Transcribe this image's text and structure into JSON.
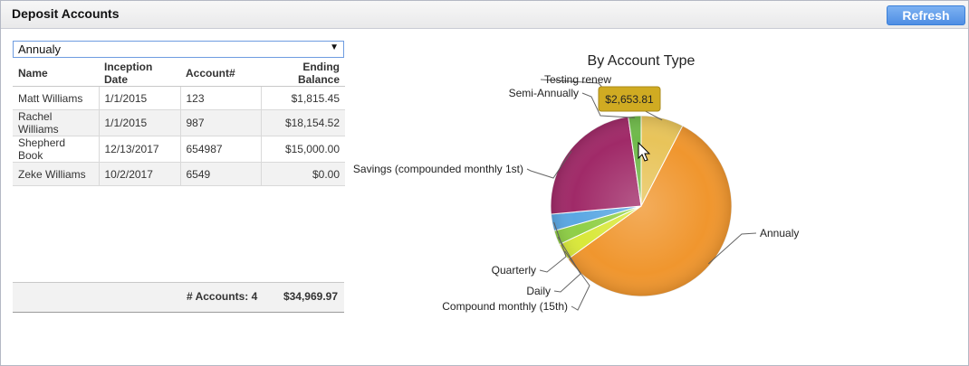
{
  "header": {
    "title": "Deposit Accounts",
    "refresh_label": "Refresh"
  },
  "filter": {
    "selected": "Annualy"
  },
  "table": {
    "columns": [
      "Name",
      "Inception Date",
      "Account#",
      "Ending Balance"
    ],
    "rows": [
      [
        "Matt Williams",
        "1/1/2015",
        "123",
        "$1,815.45"
      ],
      [
        "Rachel Williams",
        "1/1/2015",
        "987",
        "$18,154.52"
      ],
      [
        "Shepherd Book",
        "12/13/2017",
        "654987",
        "$15,000.00"
      ],
      [
        "Zeke Williams",
        "10/2/2017",
        "6549",
        "$0.00"
      ]
    ],
    "footer_count": "# Accounts: 4",
    "footer_total": "$34,969.97"
  },
  "chart_data": {
    "type": "pie",
    "title": "By Account Type",
    "slices": [
      {
        "label": "Testing renew",
        "value": 2653.81,
        "color": "#e8c45a"
      },
      {
        "label": "Annualy",
        "value": 20100,
        "color": "#f0962e"
      },
      {
        "label": "Compound monthly (15th)",
        "value": 1050,
        "color": "#d9e83a"
      },
      {
        "label": "Daily",
        "value": 900,
        "color": "#8fcf46"
      },
      {
        "label": "Quarterly",
        "value": 1050,
        "color": "#5aa7e3"
      },
      {
        "label": "Savings (compounded monthly 1st)",
        "value": 8450,
        "color": "#a02a68"
      },
      {
        "label": "Semi-Annually",
        "value": 800,
        "color": "#6fb94a"
      }
    ],
    "tooltip": "$2,653.81"
  }
}
